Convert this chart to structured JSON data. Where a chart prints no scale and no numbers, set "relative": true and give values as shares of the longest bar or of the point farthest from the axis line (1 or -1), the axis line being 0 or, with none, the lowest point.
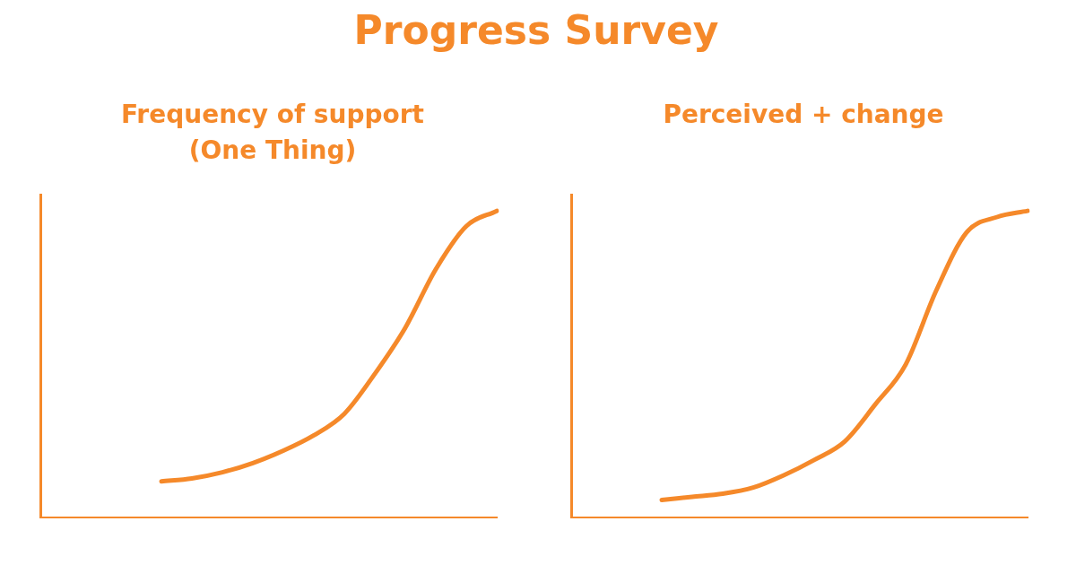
{
  "chart_data": [
    {
      "type": "other",
      "title": "Progress Survey",
      "color": "#f5892a"
    },
    {
      "type": "line",
      "title": "Frequency of support\n(One Thing)",
      "relative": true,
      "color": "#f5892a",
      "categories": [
        null,
        null,
        null,
        null,
        null,
        null,
        null,
        null,
        null,
        null,
        null,
        null,
        null,
        null,
        null,
        null
      ],
      "values": [
        null,
        null,
        null,
        null,
        0.12,
        0.13,
        0.15,
        0.18,
        0.22,
        0.27,
        0.34,
        0.47,
        0.62,
        0.81,
        0.95,
        1.0
      ]
    },
    {
      "type": "line",
      "title": "Perceived + change",
      "relative": true,
      "color": "#f5892a",
      "categories": [
        null,
        null,
        null,
        null,
        null,
        null,
        null,
        null,
        null,
        null,
        null,
        null,
        null,
        null,
        null,
        null
      ],
      "values": [
        null,
        null,
        null,
        0.06,
        0.07,
        0.08,
        0.1,
        0.14,
        0.19,
        0.25,
        0.37,
        0.5,
        0.74,
        0.93,
        0.98,
        1.0
      ]
    }
  ]
}
